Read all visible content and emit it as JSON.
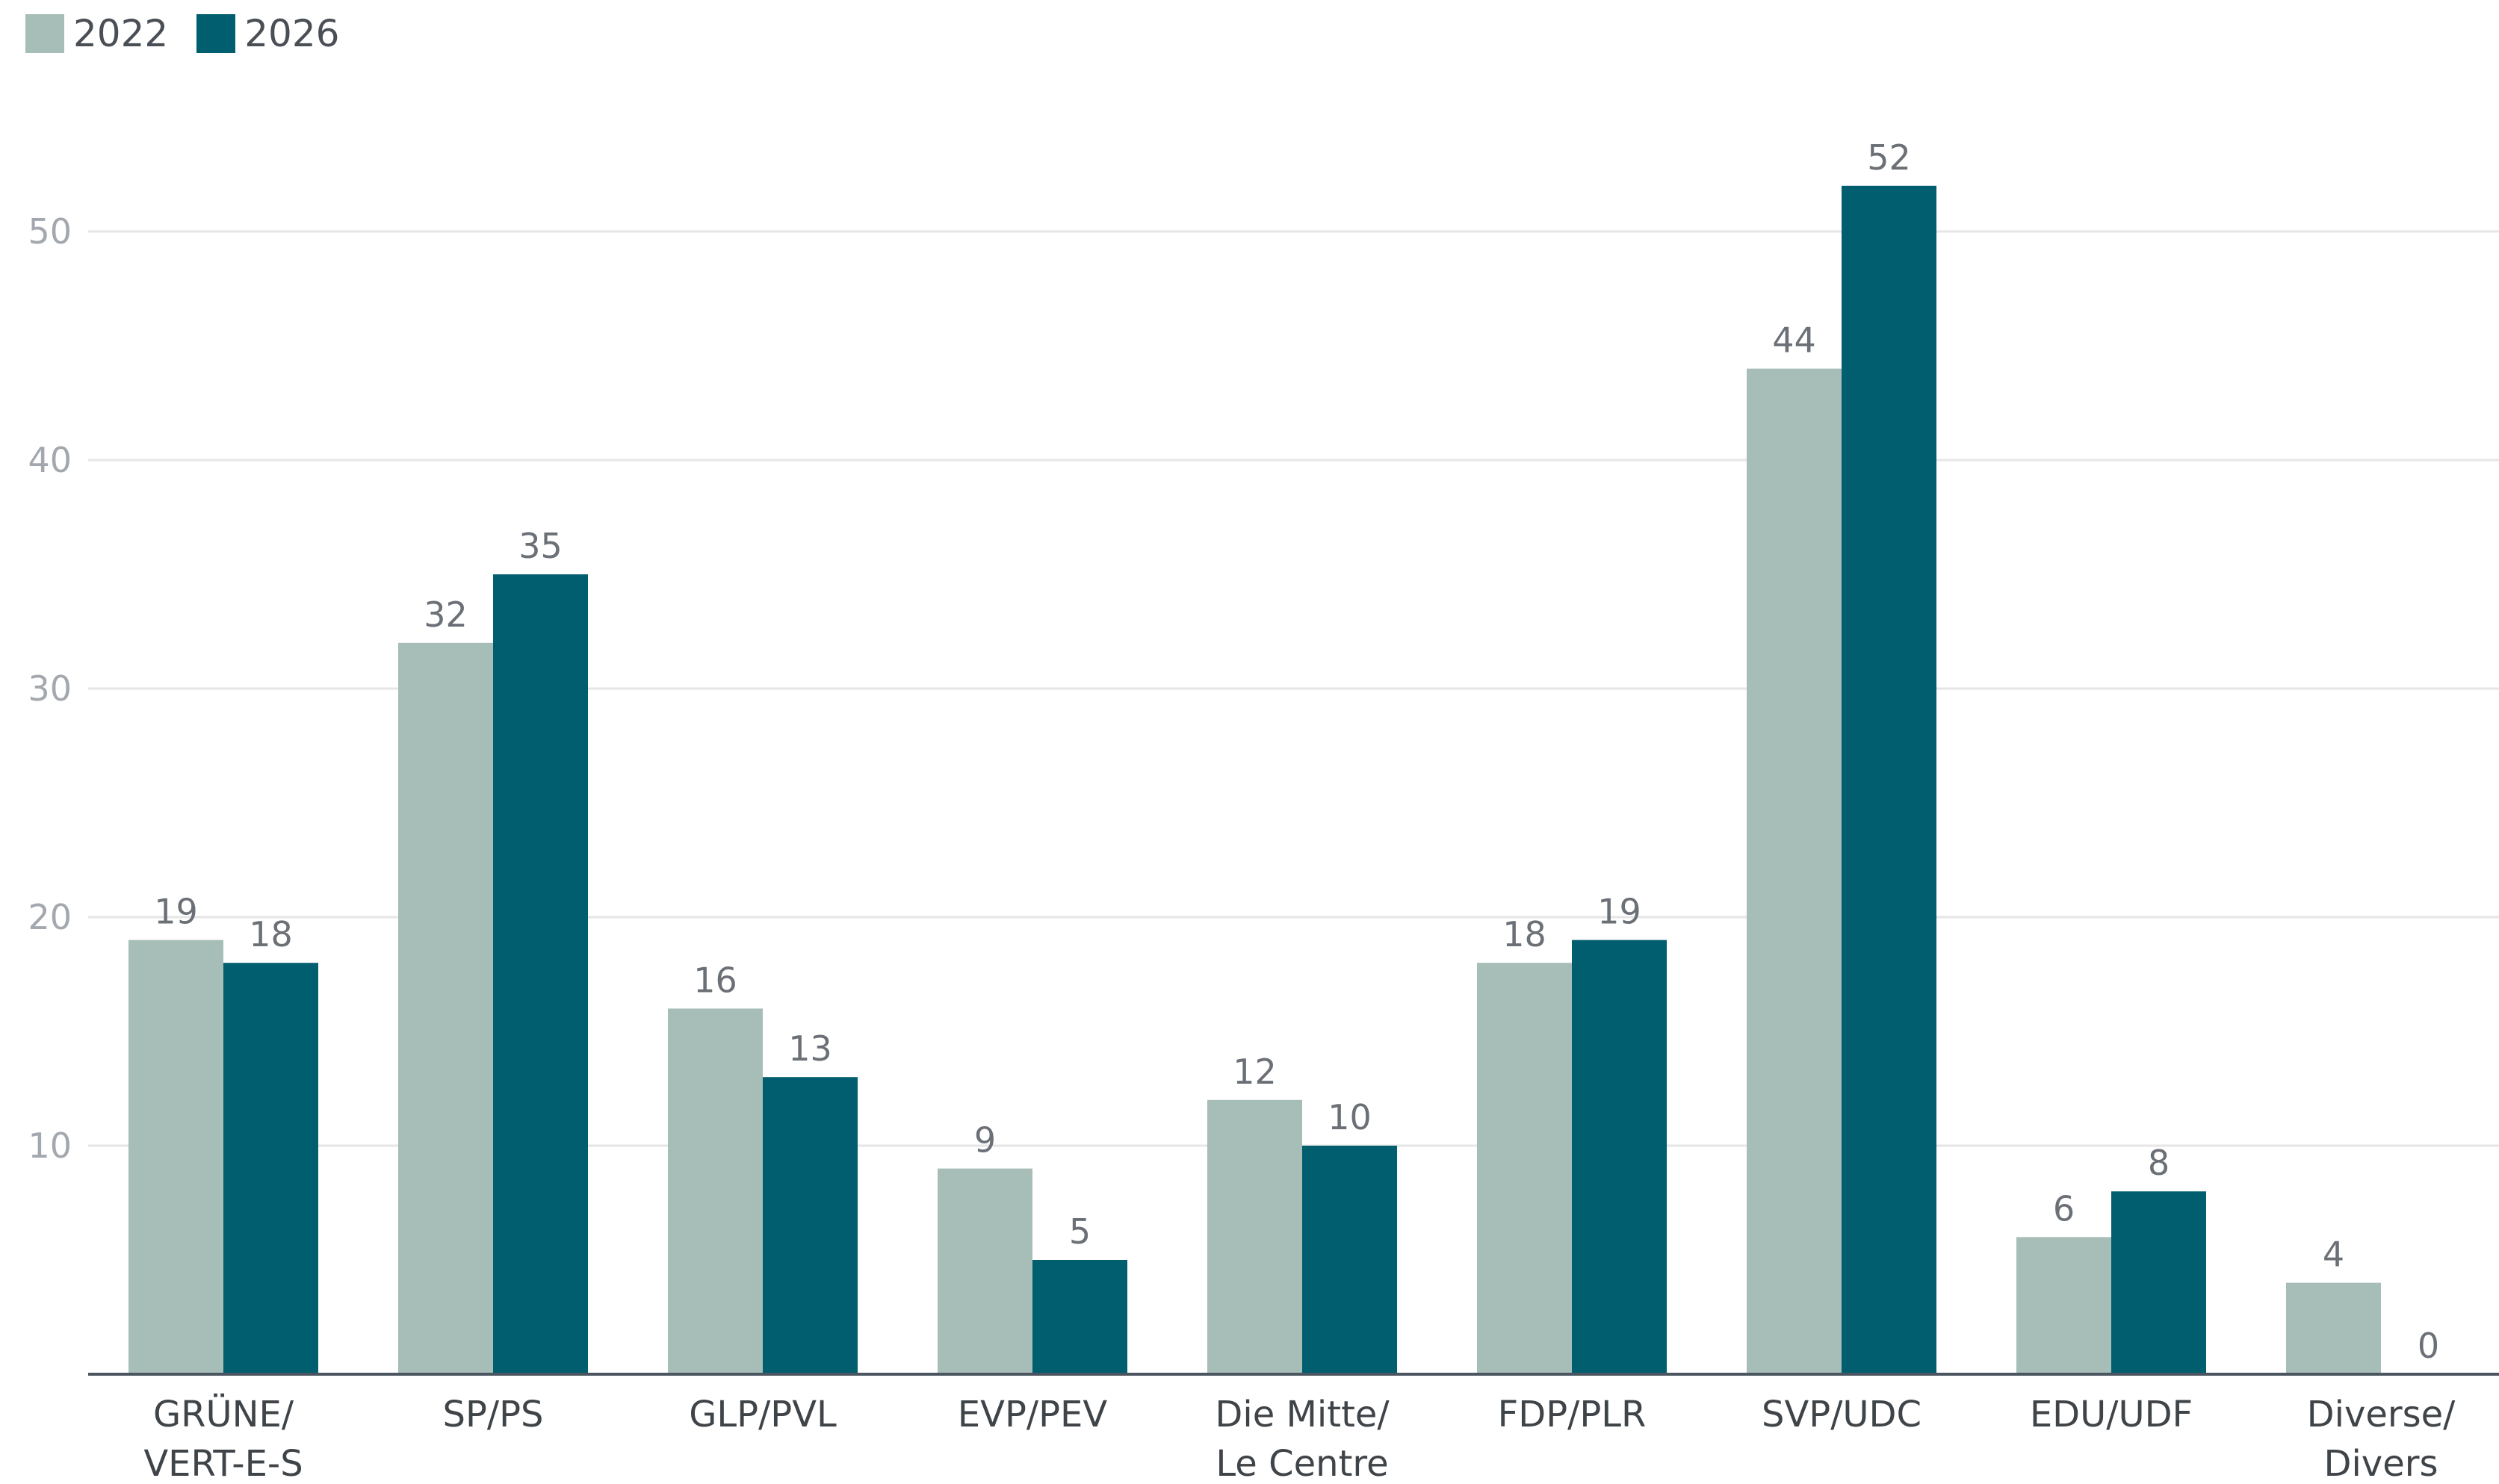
{
  "legend": {
    "items": [
      {
        "label": "2022",
        "color": "#a7bdb7"
      },
      {
        "label": "2026",
        "color": "#005e6e"
      }
    ]
  },
  "chart_data": {
    "type": "bar",
    "categories": [
      [
        "GRÜNE/",
        "VERT-E-S"
      ],
      [
        "SP/PS"
      ],
      [
        "GLP/PVL"
      ],
      [
        "EVP/PEV"
      ],
      [
        "Die Mitte/",
        "Le Centre"
      ],
      [
        "FDP/PLR"
      ],
      [
        "SVP/UDC"
      ],
      [
        "EDU/UDF"
      ],
      [
        "Diverse/",
        "Divers"
      ]
    ],
    "series": [
      {
        "name": "2022",
        "color": "#a7bdb7",
        "values": [
          19,
          32,
          16,
          9,
          12,
          18,
          44,
          6,
          4
        ]
      },
      {
        "name": "2026",
        "color": "#005e6e",
        "values": [
          18,
          35,
          13,
          5,
          10,
          19,
          52,
          8,
          0
        ]
      }
    ],
    "yticks": [
      "10",
      "20",
      "30",
      "40",
      "50"
    ],
    "ylim": [
      0,
      55
    ],
    "grid": true,
    "legend_position": "top-left",
    "colors": {
      "gridline": "#e6e6e6",
      "axis": "#4a5560"
    }
  }
}
